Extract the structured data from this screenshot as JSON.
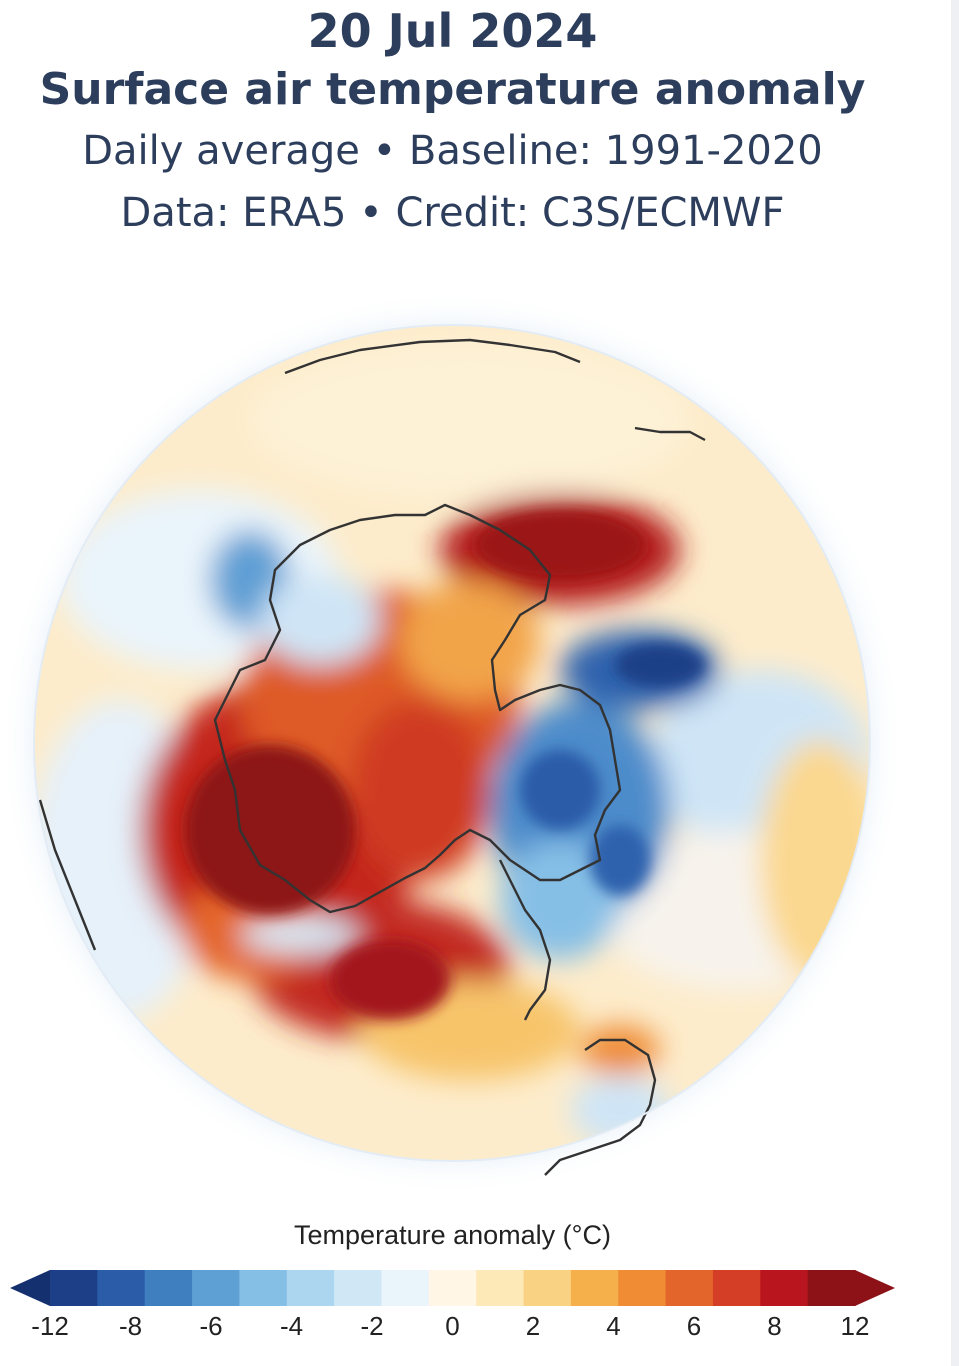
{
  "header": {
    "date": "20 Jul 2024",
    "title": "Surface air temperature anomaly",
    "subtitle": "Daily average • Baseline: 1991-2020",
    "credit": "Data: ERA5 • Credit: C3S/ECMWF"
  },
  "map": {
    "projection": "orthographic-south-polar",
    "region": "Antarctica and Southern Ocean"
  },
  "legend": {
    "title": "Temperature anomaly (°C)",
    "ticks": [
      "-12",
      "-8",
      "-6",
      "-4",
      "-2",
      "0",
      "2",
      "4",
      "6",
      "8",
      "12"
    ],
    "colors": [
      "#1d3f87",
      "#2a5ca8",
      "#3f7fc0",
      "#5e9fd4",
      "#86bfe6",
      "#acd6f0",
      "#d0e8f6",
      "#eaf4fb",
      "#fff6e6",
      "#fde9b8",
      "#fad283",
      "#f5b04c",
      "#ef8c34",
      "#e4652b",
      "#d43d26",
      "#b8151e",
      "#8d1218"
    ],
    "low_extend_color": "#15306f",
    "high_extend_color": "#8d1218"
  }
}
